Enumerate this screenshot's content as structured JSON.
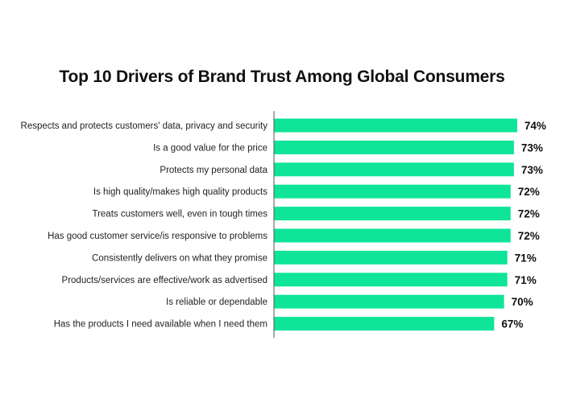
{
  "chart_data": {
    "type": "bar",
    "orientation": "horizontal",
    "title": "Top 10 Drivers of Brand Trust Among Global Consumers",
    "xlabel": "",
    "ylabel": "",
    "value_suffix": "%",
    "xlim": [
      0,
      100
    ],
    "grid": false,
    "legend": "none",
    "bar_color": "#0EE598",
    "categories": [
      "Respects and protects customers' data, privacy and security",
      "Is a good value for the price",
      "Protects my personal data",
      "Is high quality/makes high quality products",
      "Treats customers well, even in tough times",
      "Has good customer service/is responsive to problems",
      "Consistently delivers on what they promise",
      "Products/services are effective/work as advertised",
      "Is reliable or dependable",
      "Has the products I need available when I need them"
    ],
    "values": [
      74,
      73,
      73,
      72,
      72,
      72,
      71,
      71,
      70,
      67
    ],
    "value_labels": [
      "74%",
      "73%",
      "73%",
      "72%",
      "72%",
      "72%",
      "71%",
      "71%",
      "70%",
      "67%"
    ]
  }
}
